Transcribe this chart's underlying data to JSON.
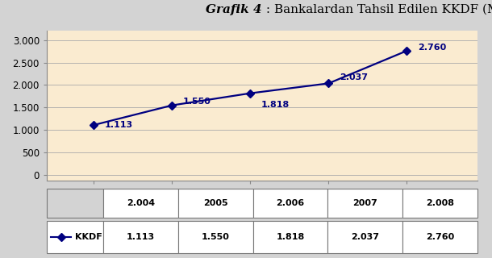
{
  "title_italic": "Grafik 4",
  "title_normal": " : Bankalardan Tahsil Edilen KKDF (Milyon TL)",
  "x_labels": [
    "2.004",
    "2005",
    "2.006",
    "2007",
    "2.008"
  ],
  "x_values": [
    2004,
    2005,
    2006,
    2007,
    2008
  ],
  "y_values": [
    1113,
    1550,
    1818,
    2037,
    2760
  ],
  "data_labels": [
    "1.113",
    "1.550",
    "1.818",
    "2.037",
    "2.760"
  ],
  "legend_label": "KKDF",
  "legend_values": [
    "1.113",
    "1.550",
    "1.818",
    "2.037",
    "2.760"
  ],
  "line_color": "#000080",
  "marker_color": "#000080",
  "plot_bg_color": "#FAEBD0",
  "outer_bg_color": "#D3D3D3",
  "ytick_labels": [
    "0",
    "500",
    "1.000",
    "1.500",
    "2.000",
    "2.500",
    "3.000"
  ],
  "ytick_values": [
    0,
    500,
    1000,
    1500,
    2000,
    2500,
    3000
  ],
  "ylim": [
    -120,
    3200
  ],
  "xlim": [
    2003.4,
    2008.9
  ],
  "title_fontsize": 11,
  "label_fontsize": 8,
  "tick_fontsize": 8.5,
  "table_fontsize": 8
}
